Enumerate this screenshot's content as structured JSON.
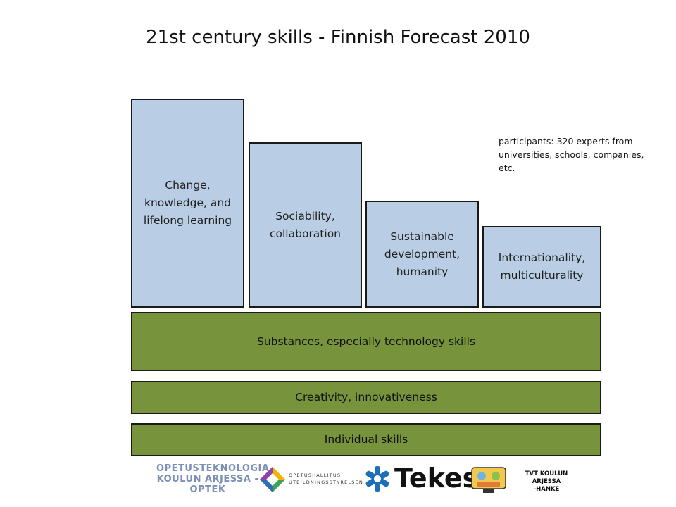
{
  "title": "21st century skills - Finnish Forecast 2010",
  "note": "participants: 320 experts from universities, schools, companies, etc.",
  "columns": [
    {
      "label": "Change, knowledge, and lifelong learning"
    },
    {
      "label": "Sociability, collaboration"
    },
    {
      "label": "Sustainable development, humanity"
    },
    {
      "label": "Internationality, multiculturality"
    }
  ],
  "layers": [
    {
      "label": "Substances, especially technology skills"
    },
    {
      "label": "Creativity, innovativeness"
    },
    {
      "label": "Individual skills"
    }
  ],
  "logos": {
    "optek": "OPETUSTEKNOLOGIA KOULUN ARJESSA -OPTEK",
    "oph_line1": "OPETUSHALLITUS",
    "oph_line2": "UTBILDNINGSSTYRELSEN",
    "tekes": "Tekes",
    "tvt_line1": "TVT KOULUN ARJESSA",
    "tvt_line2": "-HANKE"
  },
  "colors": {
    "column_fill": "#b9cde5",
    "layer_fill": "#77933c",
    "border": "#1a1a1a"
  }
}
